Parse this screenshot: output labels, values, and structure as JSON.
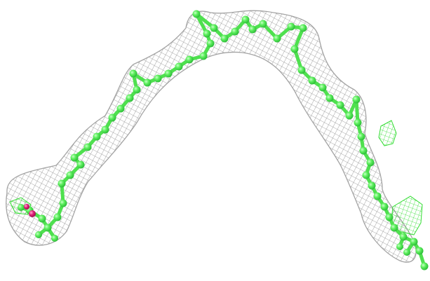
{
  "scene": {
    "subject": "molecular-model-with-density-mesh",
    "colors": {
      "background": "#ffffff",
      "mesh": "#8c8c8c",
      "carbon": "#5ff05f",
      "carbon_dark": "#2fbf3a",
      "oxygen": "#e0207a",
      "difference_mesh": "#33dd33"
    },
    "icons": {
      "model": "ball-and-stick-molecule-icon",
      "mesh": "electron-density-mesh-icon"
    }
  }
}
